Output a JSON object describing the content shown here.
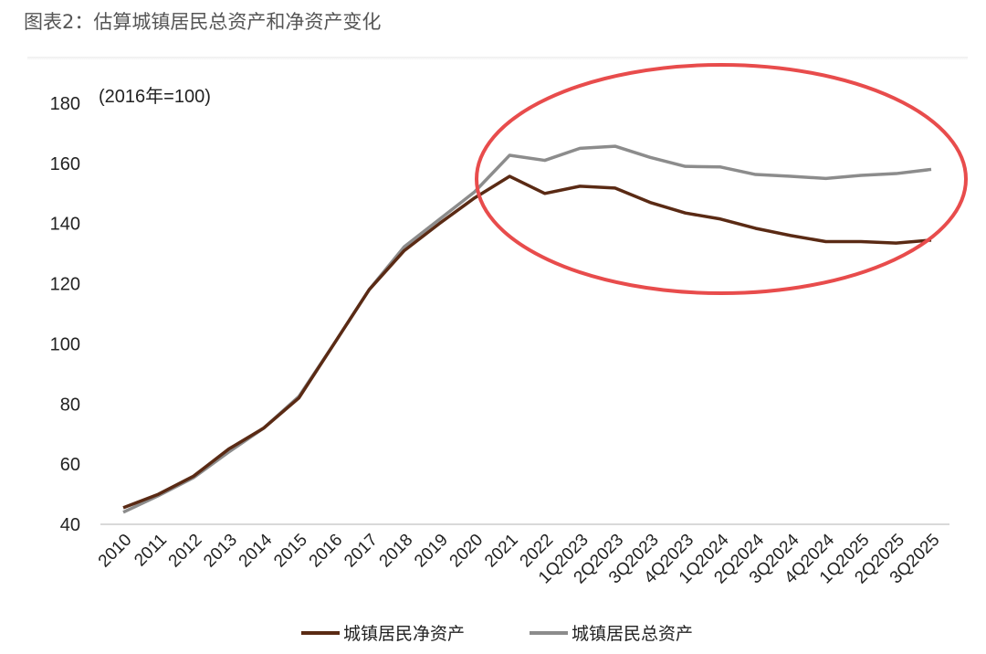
{
  "title": "图表2：估算城镇居民总资产和净资产变化",
  "chart_data": {
    "type": "line",
    "title": "",
    "unit_note": "(2016年=100)",
    "xlabel": "",
    "ylabel": "",
    "ylim": [
      40,
      180
    ],
    "yticks": [
      40,
      60,
      80,
      100,
      120,
      140,
      160,
      180
    ],
    "grid": false,
    "legend": "bottom",
    "categories": [
      "2010",
      "2011",
      "2012",
      "2013",
      "2014",
      "2015",
      "2016",
      "2017",
      "2018",
      "2019",
      "2020",
      "2021",
      "2022",
      "1Q2023",
      "2Q2023",
      "3Q2023",
      "4Q2023",
      "1Q2024",
      "2Q2024",
      "3Q2024",
      "4Q2024",
      "1Q2025",
      "2Q2025",
      "3Q2025"
    ],
    "series": [
      {
        "name": "城镇居民净资产",
        "color": "#5a2a14",
        "values": [
          45.5,
          50,
          56,
          65,
          72,
          82,
          100,
          118,
          131,
          140,
          148.5,
          155.7,
          150,
          152.4,
          151.8,
          147,
          143.5,
          141.5,
          138.4,
          136,
          134,
          134,
          133.5,
          134.5
        ]
      },
      {
        "name": "城镇居民总资产",
        "color": "#8c8c8c",
        "values": [
          44,
          49.5,
          55.5,
          64,
          72,
          82.5,
          100,
          118,
          132.3,
          141.4,
          150.5,
          162.7,
          161,
          165,
          165.7,
          162,
          159,
          158.8,
          156.3,
          155.7,
          155,
          156,
          156.6,
          158
        ]
      }
    ],
    "annotation_color": "#e84c4c"
  }
}
